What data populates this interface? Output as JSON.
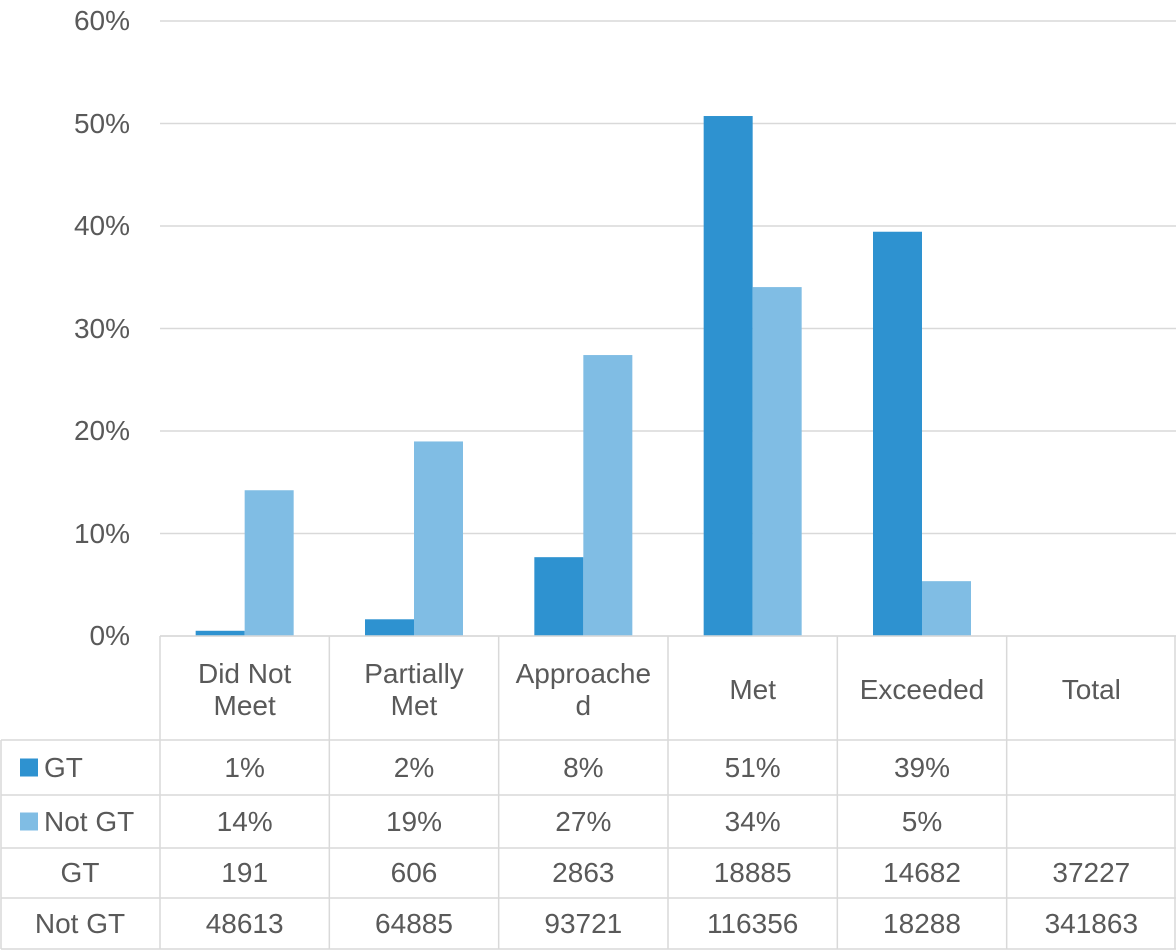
{
  "chart_data": {
    "type": "bar",
    "categories": [
      "Did Not Meet",
      "Partially Met",
      "Approached",
      "Met",
      "Exceeded",
      "Total"
    ],
    "series": [
      {
        "name": "GT",
        "color": "#2e92d0",
        "values": [
          0.51,
          1.63,
          7.69,
          50.73,
          39.44,
          null
        ],
        "value_labels": [
          "1%",
          "2%",
          "8%",
          "51%",
          "39%",
          null
        ]
      },
      {
        "name": "Not GT",
        "color": "#80bde4",
        "values": [
          14.22,
          18.98,
          27.41,
          34.04,
          5.35,
          null
        ],
        "value_labels": [
          "14%",
          "19%",
          "27%",
          "34%",
          "5%",
          null
        ]
      }
    ],
    "ylim": [
      0,
      60
    ],
    "yticks": [
      {
        "value": 0,
        "label": "0%"
      },
      {
        "value": 10,
        "label": "10%"
      },
      {
        "value": 20,
        "label": "20%"
      },
      {
        "value": 30,
        "label": "30%"
      },
      {
        "value": 40,
        "label": "40%"
      },
      {
        "value": 50,
        "label": "50%"
      },
      {
        "value": 60,
        "label": "60%"
      }
    ],
    "grid": true,
    "data_table": {
      "rows": [
        {
          "name": "GT",
          "values": [
            191,
            606,
            2863,
            18885,
            14682,
            37227
          ]
        },
        {
          "name": "Not GT",
          "values": [
            48613,
            64885,
            93721,
            116356,
            18288,
            341863
          ]
        }
      ]
    }
  }
}
